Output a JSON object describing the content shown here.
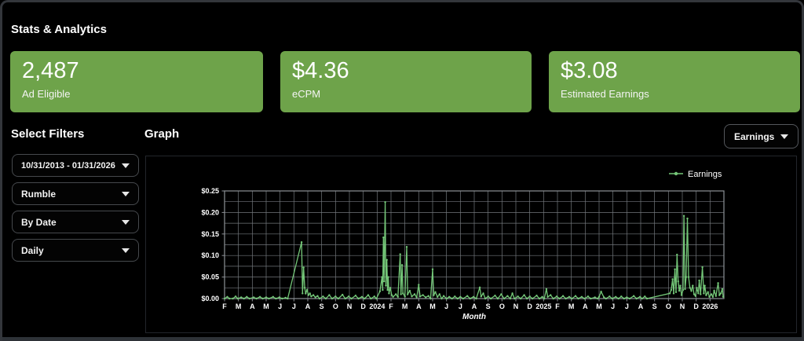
{
  "page": {
    "title": "Stats & Analytics"
  },
  "stats": [
    {
      "value": "2,487",
      "label": "Ad Eligible"
    },
    {
      "value": "$4.36",
      "label": "eCPM"
    },
    {
      "value": "$3.08",
      "label": "Estimated Earnings"
    }
  ],
  "filters": {
    "heading": "Select Filters",
    "dropdowns": [
      {
        "name": "date-range",
        "value": "10/31/2013 - 01/31/2026"
      },
      {
        "name": "platform",
        "value": "Rumble"
      },
      {
        "name": "group-by",
        "value": "By Date"
      },
      {
        "name": "interval",
        "value": "Daily"
      }
    ]
  },
  "graph": {
    "heading": "Graph",
    "metric_dropdown": {
      "value": "Earnings"
    },
    "legend_label": "Earnings"
  },
  "colors": {
    "card_green": "#6EA34A",
    "line_green": "#74C778",
    "grid": "#73777c",
    "plot_border": "#8d9196",
    "tick_text": "#ffffff"
  },
  "chart_data": {
    "type": "line",
    "title": "",
    "xlabel": "Month",
    "ylabel": "",
    "legend_position": "top-right",
    "grid": true,
    "ylim": [
      0,
      0.25
    ],
    "y_ticks": [
      0,
      0.05,
      0.1,
      0.15,
      0.2,
      0.25
    ],
    "y_tick_labels": [
      "$0.00",
      "$0.05",
      "$0.10",
      "$0.15",
      "$0.20",
      "$0.25"
    ],
    "y_minor_step": 0.025,
    "x_months": 36,
    "x_start": "Feb 2023",
    "x_tick_labels": [
      "F",
      "M",
      "A",
      "M",
      "J",
      "J",
      "A",
      "S",
      "O",
      "N",
      "D",
      "2024",
      "F",
      "M",
      "A",
      "M",
      "J",
      "J",
      "A",
      "S",
      "O",
      "N",
      "D",
      "2025",
      "F",
      "M",
      "A",
      "M",
      "J",
      "J",
      "A",
      "S",
      "O",
      "N",
      "D",
      "2026"
    ],
    "series": [
      {
        "name": "Earnings",
        "units": "USD per day",
        "points": [
          [
            0.0,
            0
          ],
          [
            0.2,
            0.004
          ],
          [
            0.35,
            0
          ],
          [
            0.6,
            0
          ],
          [
            0.8,
            0.005
          ],
          [
            0.95,
            0
          ],
          [
            1.2,
            0.003
          ],
          [
            1.4,
            0
          ],
          [
            1.6,
            0.004
          ],
          [
            1.8,
            0
          ],
          [
            2.1,
            0.003
          ],
          [
            2.3,
            0
          ],
          [
            2.55,
            0.004
          ],
          [
            2.75,
            0
          ],
          [
            3.0,
            0.003
          ],
          [
            3.2,
            0
          ],
          [
            3.5,
            0.004
          ],
          [
            3.7,
            0
          ],
          [
            3.95,
            0.003
          ],
          [
            4.15,
            0
          ],
          [
            4.4,
            0.002
          ],
          [
            4.55,
            0
          ],
          [
            5.55,
            0.131
          ],
          [
            5.62,
            0.012
          ],
          [
            5.7,
            0.072
          ],
          [
            5.78,
            0.025
          ],
          [
            5.85,
            0.012
          ],
          [
            5.95,
            0.02
          ],
          [
            6.05,
            0.008
          ],
          [
            6.15,
            0.012
          ],
          [
            6.25,
            0.005
          ],
          [
            6.4,
            0.008
          ],
          [
            6.55,
            0.003
          ],
          [
            6.7,
            0.006
          ],
          [
            6.85,
            0
          ],
          [
            7.1,
            0.005
          ],
          [
            7.3,
            0
          ],
          [
            7.55,
            0.008
          ],
          [
            7.75,
            0
          ],
          [
            8.0,
            0.005
          ],
          [
            8.2,
            0
          ],
          [
            8.5,
            0.009
          ],
          [
            8.7,
            0
          ],
          [
            8.95,
            0.005
          ],
          [
            9.15,
            0
          ],
          [
            9.45,
            0.007
          ],
          [
            9.65,
            0
          ],
          [
            9.9,
            0.004
          ],
          [
            10.1,
            0
          ],
          [
            10.35,
            0.008
          ],
          [
            10.55,
            0
          ],
          [
            10.8,
            0.005
          ],
          [
            10.95,
            0
          ],
          [
            11.2,
            0.017
          ],
          [
            11.35,
            0.05
          ],
          [
            11.4,
            0.02
          ],
          [
            11.45,
            0.142
          ],
          [
            11.5,
            0.04
          ],
          [
            11.58,
            0.224
          ],
          [
            11.63,
            0.03
          ],
          [
            11.7,
            0.09
          ],
          [
            11.75,
            0.02
          ],
          [
            11.8,
            0.05
          ],
          [
            11.85,
            0.012
          ],
          [
            11.95,
            0.025
          ],
          [
            12.05,
            0.008
          ],
          [
            12.15,
            0.004
          ],
          [
            12.35,
            0.01
          ],
          [
            12.5,
            0.004
          ],
          [
            12.66,
            0.103
          ],
          [
            12.72,
            0.01
          ],
          [
            12.8,
            0.078
          ],
          [
            12.86,
            0.012
          ],
          [
            13.0,
            0.005
          ],
          [
            13.13,
            0.12
          ],
          [
            13.2,
            0.01
          ],
          [
            13.35,
            0.018
          ],
          [
            13.5,
            0.005
          ],
          [
            13.7,
            0.01
          ],
          [
            13.85,
            0.003
          ],
          [
            14.0,
            0.032
          ],
          [
            14.1,
            0.005
          ],
          [
            14.3,
            0.008
          ],
          [
            14.5,
            0.003
          ],
          [
            14.7,
            0.006
          ],
          [
            14.85,
            0
          ],
          [
            15.0,
            0.068
          ],
          [
            15.08,
            0.008
          ],
          [
            15.2,
            0.015
          ],
          [
            15.35,
            0.004
          ],
          [
            15.5,
            0.01
          ],
          [
            15.65,
            0
          ],
          [
            15.8,
            0.006
          ],
          [
            16.0,
            0
          ],
          [
            16.2,
            0.004
          ],
          [
            16.4,
            0
          ],
          [
            16.6,
            0.005
          ],
          [
            16.8,
            0
          ],
          [
            17.0,
            0.004
          ],
          [
            17.2,
            0
          ],
          [
            17.5,
            0.006
          ],
          [
            17.7,
            0
          ],
          [
            17.95,
            0.004
          ],
          [
            18.15,
            0
          ],
          [
            18.4,
            0.026
          ],
          [
            18.5,
            0.005
          ],
          [
            18.65,
            0.012
          ],
          [
            18.8,
            0
          ],
          [
            19.0,
            0.005
          ],
          [
            19.2,
            0
          ],
          [
            19.5,
            0.007
          ],
          [
            19.7,
            0
          ],
          [
            19.95,
            0.01
          ],
          [
            20.15,
            0
          ],
          [
            20.4,
            0.006
          ],
          [
            20.6,
            0
          ],
          [
            20.75,
            0.012
          ],
          [
            20.9,
            0
          ],
          [
            21.15,
            0.005
          ],
          [
            21.35,
            0
          ],
          [
            21.6,
            0.008
          ],
          [
            21.8,
            0
          ],
          [
            22.0,
            0.005
          ],
          [
            22.2,
            0
          ],
          [
            22.5,
            0.007
          ],
          [
            22.7,
            0
          ],
          [
            22.9,
            0.004
          ],
          [
            23.05,
            0
          ],
          [
            23.2,
            0.022
          ],
          [
            23.3,
            0.004
          ],
          [
            23.5,
            0.008
          ],
          [
            23.7,
            0
          ],
          [
            23.95,
            0.005
          ],
          [
            24.15,
            0
          ],
          [
            24.4,
            0.006
          ],
          [
            24.6,
            0
          ],
          [
            24.85,
            0.004
          ],
          [
            25.05,
            0
          ],
          [
            25.3,
            0.006
          ],
          [
            25.5,
            0
          ],
          [
            25.75,
            0.004
          ],
          [
            25.95,
            0
          ],
          [
            26.2,
            0.005
          ],
          [
            26.4,
            0
          ],
          [
            26.7,
            0.003
          ],
          [
            26.9,
            0
          ],
          [
            27.0,
            0.004
          ],
          [
            27.15,
            0.016
          ],
          [
            27.35,
            0.003
          ],
          [
            27.5,
            0
          ],
          [
            27.75,
            0.005
          ],
          [
            27.95,
            0
          ],
          [
            28.2,
            0.004
          ],
          [
            28.4,
            0
          ],
          [
            28.6,
            0.005
          ],
          [
            28.8,
            0
          ],
          [
            29.0,
            0.003
          ],
          [
            29.2,
            0
          ],
          [
            29.5,
            0.006
          ],
          [
            29.7,
            0
          ],
          [
            29.95,
            0.004
          ],
          [
            30.1,
            0
          ],
          [
            30.3,
            0.005
          ],
          [
            30.45,
            0
          ],
          [
            32.1,
            0.012
          ],
          [
            32.2,
            0.02
          ],
          [
            32.3,
            0.045
          ],
          [
            32.38,
            0.012
          ],
          [
            32.47,
            0.068
          ],
          [
            32.55,
            0.015
          ],
          [
            32.62,
            0.102
          ],
          [
            32.7,
            0.04
          ],
          [
            32.78,
            0.018
          ],
          [
            32.85,
            0.03
          ],
          [
            32.95,
            0.008
          ],
          [
            33.05,
            0.02
          ],
          [
            33.12,
            0.192
          ],
          [
            33.2,
            0.022
          ],
          [
            33.28,
            0.05
          ],
          [
            33.37,
            0.186
          ],
          [
            33.45,
            0.05
          ],
          [
            33.55,
            0.025
          ],
          [
            33.65,
            0.018
          ],
          [
            33.75,
            0.03
          ],
          [
            33.85,
            0.01
          ],
          [
            33.95,
            0.006
          ],
          [
            34.05,
            0.025
          ],
          [
            34.15,
            0.012
          ],
          [
            34.22,
            0.042
          ],
          [
            34.32,
            0.01
          ],
          [
            34.45,
            0.073
          ],
          [
            34.55,
            0.012
          ],
          [
            34.62,
            0.03
          ],
          [
            34.72,
            0.008
          ],
          [
            34.85,
            0.015
          ],
          [
            34.95,
            0.004
          ],
          [
            35.1,
            0.01
          ],
          [
            35.2,
            0.004
          ],
          [
            35.3,
            0.018
          ],
          [
            35.42,
            0.006
          ],
          [
            35.58,
            0.036
          ],
          [
            35.68,
            0.008
          ],
          [
            35.78,
            0.012
          ],
          [
            35.88,
            0.022
          ],
          [
            35.95,
            0.004
          ]
        ]
      }
    ]
  }
}
